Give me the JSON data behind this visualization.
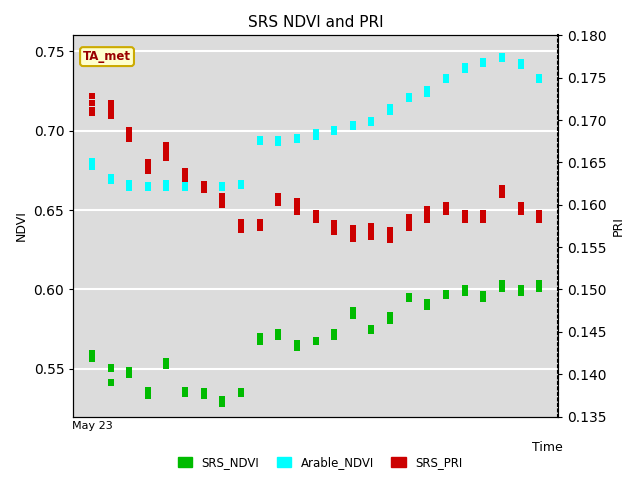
{
  "title": "SRS NDVI and PRI",
  "xlabel": "Time",
  "ylabel_left": "NDVI",
  "ylabel_right": "PRI",
  "ylim_left": [
    0.52,
    0.76
  ],
  "ylim_right": [
    0.135,
    0.18
  ],
  "annotation_text": "TA_met",
  "bg_color": "#dcdcdc",
  "title_fontsize": 11,
  "label_fontsize": 9,
  "tick_fontsize": 8,
  "srs_ndvi_color": "#00bb00",
  "arable_ndvi_color": "cyan",
  "srs_pri_color": "#cc0000",
  "marker_size": 18,
  "srs_ndvi": {
    "x": [
      1,
      1,
      1,
      1,
      1,
      2,
      2,
      2,
      2,
      3,
      3,
      3,
      4,
      4,
      4,
      4,
      4,
      5,
      5,
      5,
      5,
      6,
      6,
      6,
      6,
      6,
      7,
      7,
      7,
      7,
      8,
      8,
      8,
      8,
      8,
      9,
      9,
      9,
      9,
      10,
      10,
      10,
      10,
      10,
      11,
      11,
      11,
      11,
      12,
      12,
      12,
      12,
      12,
      13,
      13,
      13
    ],
    "y": [
      0.558,
      0.556,
      0.557,
      0.558,
      0.56,
      0.542,
      0.541,
      0.55,
      0.551,
      0.548,
      0.549,
      0.546,
      0.534,
      0.533,
      0.535,
      0.536,
      0.537,
      0.552,
      0.553,
      0.554,
      0.555,
      0.536,
      0.534,
      0.535,
      0.536,
      0.537,
      0.536,
      0.535,
      0.533,
      0.534,
      0.53,
      0.529,
      0.528,
      0.53,
      0.531,
      0.534,
      0.535,
      0.536,
      0.534,
      0.567,
      0.568,
      0.57,
      0.569,
      0.571,
      0.572,
      0.573,
      0.571,
      0.57,
      0.565,
      0.566,
      0.564,
      0.565,
      0.563,
      0.568,
      0.567,
      0.568
    ]
  },
  "srs_ndvi2": {
    "x": [
      14,
      14,
      14,
      14,
      15,
      15,
      15,
      15,
      15,
      16,
      16,
      16,
      16,
      17,
      17,
      17,
      17,
      17,
      18,
      18,
      18,
      18,
      19,
      19,
      19,
      19,
      19,
      20,
      20,
      20,
      20,
      21,
      21,
      21,
      21,
      21,
      22,
      22,
      22,
      22,
      23,
      23,
      23,
      23,
      23,
      24,
      24,
      24,
      24,
      25,
      25,
      25,
      25,
      25
    ],
    "y": [
      0.571,
      0.57,
      0.573,
      0.572,
      0.583,
      0.584,
      0.586,
      0.585,
      0.587,
      0.575,
      0.576,
      0.574,
      0.575,
      0.58,
      0.581,
      0.583,
      0.582,
      0.584,
      0.595,
      0.596,
      0.594,
      0.595,
      0.59,
      0.591,
      0.59,
      0.592,
      0.589,
      0.597,
      0.598,
      0.597,
      0.596,
      0.598,
      0.599,
      0.6,
      0.601,
      0.599,
      0.595,
      0.596,
      0.594,
      0.597,
      0.6,
      0.601,
      0.603,
      0.602,
      0.604,
      0.598,
      0.599,
      0.6,
      0.601,
      0.6,
      0.601,
      0.603,
      0.602,
      0.604
    ]
  },
  "arable_ndvi": {
    "x": [
      1,
      1,
      1,
      1,
      1,
      2,
      2,
      2,
      2,
      3,
      3,
      3,
      3,
      3,
      4,
      4,
      4,
      5,
      5,
      5,
      5,
      5,
      6,
      6,
      6,
      7,
      7,
      7,
      7,
      7,
      8,
      8,
      8,
      9,
      9,
      9,
      9,
      9,
      10,
      10,
      10,
      10,
      11,
      11,
      11,
      11,
      11,
      12,
      12,
      12,
      12,
      13,
      13,
      13,
      13,
      13,
      14,
      14,
      14,
      15,
      15,
      15,
      15,
      15,
      16,
      16,
      16,
      16,
      17,
      17,
      17,
      17,
      17,
      18,
      18,
      18,
      18,
      19,
      19,
      19,
      19,
      19,
      20,
      20,
      20,
      20,
      21,
      21,
      21,
      21,
      21,
      22,
      22,
      22,
      22,
      23,
      23,
      23,
      23,
      23,
      24,
      24,
      24,
      24,
      25,
      25,
      25,
      25,
      25
    ],
    "y": [
      0.68,
      0.678,
      0.679,
      0.681,
      0.677,
      0.67,
      0.668,
      0.669,
      0.671,
      0.665,
      0.664,
      0.666,
      0.667,
      0.665,
      0.665,
      0.664,
      0.666,
      0.667,
      0.666,
      0.665,
      0.664,
      0.666,
      0.665,
      0.664,
      0.666,
      0.665,
      0.664,
      0.665,
      0.666,
      0.664,
      0.666,
      0.665,
      0.664,
      0.666,
      0.665,
      0.667,
      0.666,
      0.665,
      0.695,
      0.694,
      0.693,
      0.694,
      0.692,
      0.693,
      0.694,
      0.695,
      0.693,
      0.696,
      0.695,
      0.694,
      0.695,
      0.697,
      0.696,
      0.698,
      0.699,
      0.697,
      0.7,
      0.701,
      0.699,
      0.702,
      0.703,
      0.704,
      0.703,
      0.702,
      0.705,
      0.706,
      0.707,
      0.706,
      0.712,
      0.713,
      0.714,
      0.713,
      0.715,
      0.72,
      0.721,
      0.722,
      0.721,
      0.723,
      0.724,
      0.725,
      0.726,
      0.724,
      0.732,
      0.733,
      0.734,
      0.733,
      0.738,
      0.739,
      0.74,
      0.741,
      0.739,
      0.742,
      0.743,
      0.744,
      0.743,
      0.745,
      0.746,
      0.747,
      0.746,
      0.745,
      0.742,
      0.743,
      0.741,
      0.742,
      0.733,
      0.734,
      0.732,
      0.733,
      0.732
    ]
  },
  "srs_pri": {
    "x": [
      1,
      1,
      1,
      1,
      2,
      2,
      2,
      2,
      3,
      3,
      3,
      3,
      4,
      4,
      4,
      4,
      5,
      5,
      5,
      5,
      6,
      6,
      6,
      6,
      7,
      7,
      7,
      7,
      8,
      8,
      8,
      8,
      9,
      9,
      9,
      9,
      10,
      10,
      10,
      10,
      11,
      11,
      11,
      11,
      12,
      12,
      12,
      12,
      13,
      13,
      13,
      13,
      14,
      14,
      14,
      14,
      15,
      15,
      15,
      15,
      16,
      16,
      16,
      16,
      17,
      17,
      17,
      17,
      18,
      18,
      18,
      18,
      19,
      19,
      19,
      19,
      20,
      20,
      20,
      20,
      21,
      21,
      21,
      21,
      22,
      22,
      22,
      22,
      23,
      23,
      23,
      23,
      24,
      24,
      24,
      24,
      25,
      25,
      25,
      25
    ],
    "y": [
      0.1728,
      0.172,
      0.1712,
      0.1708,
      0.172,
      0.1715,
      0.171,
      0.1705,
      0.1685,
      0.168,
      0.1688,
      0.1678,
      0.165,
      0.1645,
      0.164,
      0.1648,
      0.167,
      0.1665,
      0.166,
      0.1655,
      0.164,
      0.1635,
      0.1638,
      0.163,
      0.1625,
      0.162,
      0.1623,
      0.1618,
      0.161,
      0.1605,
      0.1608,
      0.16,
      0.158,
      0.1575,
      0.1578,
      0.157,
      0.158,
      0.1575,
      0.1578,
      0.1572,
      0.161,
      0.1605,
      0.1608,
      0.1602,
      0.1605,
      0.16,
      0.1598,
      0.1592,
      0.159,
      0.1585,
      0.1588,
      0.1582,
      0.1578,
      0.1572,
      0.1575,
      0.1568,
      0.1572,
      0.1568,
      0.1565,
      0.156,
      0.1575,
      0.157,
      0.1568,
      0.1562,
      0.157,
      0.1565,
      0.1563,
      0.1558,
      0.1585,
      0.158,
      0.1578,
      0.1572,
      0.1595,
      0.159,
      0.1588,
      0.1582,
      0.16,
      0.1595,
      0.1598,
      0.1592,
      0.159,
      0.1585,
      0.1588,
      0.1582,
      0.159,
      0.1585,
      0.1588,
      0.1582,
      0.162,
      0.1615,
      0.1618,
      0.1612,
      0.16,
      0.1595,
      0.1598,
      0.1592,
      0.159,
      0.1585,
      0.1588,
      0.1582
    ]
  },
  "xtick_label": "May 23",
  "grid_color": "white"
}
